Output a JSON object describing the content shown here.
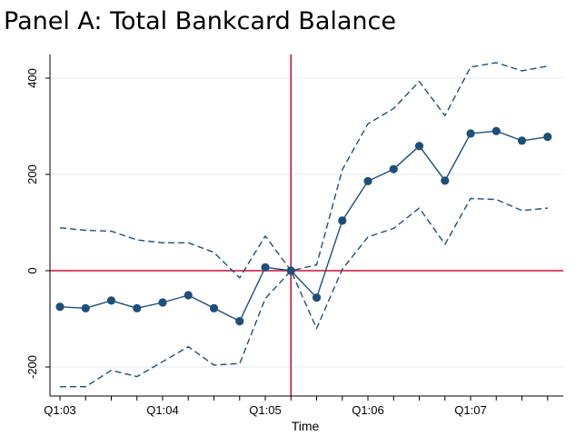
{
  "chart_data": {
    "type": "line",
    "title": "Panel A: Total Bankcard Balance",
    "xlabel": "Time",
    "ylabel": "",
    "x_tick_labels": [
      {
        "label": "Q1:03",
        "t": 0
      },
      {
        "label": "Q1:04",
        "t": 4
      },
      {
        "label": "Q1:05",
        "t": 8
      },
      {
        "label": "Q1:06",
        "t": 12
      },
      {
        "label": "Q1:07",
        "t": 16
      }
    ],
    "x_minor_ticks": [
      0,
      1,
      2,
      3,
      4,
      5,
      6,
      7,
      8,
      9,
      10,
      11,
      12,
      13,
      14,
      15,
      16,
      17,
      18,
      19
    ],
    "y_ticks": [
      -200,
      0,
      200,
      400
    ],
    "xlim": [
      0,
      19
    ],
    "ylim": [
      -260,
      450
    ],
    "x": [
      0,
      1,
      2,
      3,
      4,
      5,
      6,
      7,
      8,
      9,
      10,
      11,
      12,
      13,
      14,
      15,
      16,
      17,
      18,
      19
    ],
    "series": [
      {
        "role": "estimate",
        "style": "solid-markers",
        "values": [
          -75,
          -78,
          -62,
          -78,
          -66,
          -51,
          -78,
          -105,
          7,
          0,
          -56,
          104,
          186,
          211,
          259,
          187,
          285,
          290,
          270,
          278
        ]
      },
      {
        "role": "upper_ci",
        "style": "dashed",
        "values": [
          89,
          84,
          82,
          64,
          58,
          58,
          38,
          -15,
          72,
          0,
          12,
          210,
          305,
          337,
          393,
          322,
          423,
          432,
          415,
          425
        ]
      },
      {
        "role": "lower_ci",
        "style": "dashed",
        "values": [
          -241,
          -241,
          -207,
          -220,
          -189,
          -158,
          -196,
          -193,
          -58,
          0,
          -120,
          3,
          70,
          88,
          130,
          55,
          150,
          148,
          125,
          130
        ]
      }
    ],
    "reference_lines": {
      "horizontal_y": 0,
      "vertical_x": 9
    },
    "grid": true,
    "legend": "none",
    "colors": {
      "series": "#1f4e79",
      "reference": "#c8143c",
      "grid": "#e4eaef",
      "axis": "#000000"
    }
  }
}
